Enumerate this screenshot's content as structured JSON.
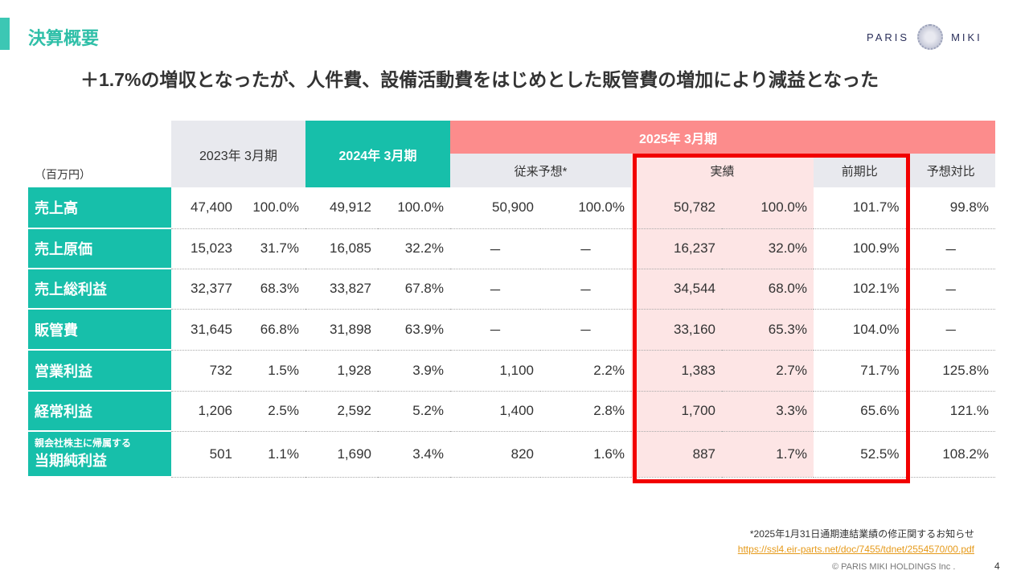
{
  "header": {
    "title": "決算概要",
    "logo_left": "PARIS",
    "logo_right": "MIKI"
  },
  "headline": "＋1.7%の増収となったが、人件費、設備活動費をはじめとした販管費の増加により減益となった",
  "table": {
    "unit": "（百万円）",
    "col_2023": "2023年 3月期",
    "col_2024": "2024年 3月期",
    "col_2025": "2025年 3月期",
    "sub_forecast": "従来予想*",
    "sub_actual": "実績",
    "sub_yoy": "前期比",
    "sub_vs_forecast": "予想対比",
    "rows": [
      {
        "label": "売上高",
        "v23": "47,400",
        "p23": "100.0%",
        "v24": "49,912",
        "p24": "100.0%",
        "vf": "50,900",
        "pf": "100.0%",
        "va": "50,782",
        "pa": "100.0%",
        "yoy": "101.7%",
        "vsf": "99.8%"
      },
      {
        "label": "売上原価",
        "v23": "15,023",
        "p23": "31.7%",
        "v24": "16,085",
        "p24": "32.2%",
        "vf": "－",
        "pf": "－",
        "va": "16,237",
        "pa": "32.0%",
        "yoy": "100.9%",
        "vsf": "－"
      },
      {
        "label": "売上総利益",
        "v23": "32,377",
        "p23": "68.3%",
        "v24": "33,827",
        "p24": "67.8%",
        "vf": "－",
        "pf": "－",
        "va": "34,544",
        "pa": "68.0%",
        "yoy": "102.1%",
        "vsf": "－"
      },
      {
        "label": "販管費",
        "v23": "31,645",
        "p23": "66.8%",
        "v24": "31,898",
        "p24": "63.9%",
        "vf": "－",
        "pf": "－",
        "va": "33,160",
        "pa": "65.3%",
        "yoy": "104.0%",
        "vsf": "－"
      },
      {
        "label": "営業利益",
        "v23": "732",
        "p23": "1.5%",
        "v24": "1,928",
        "p24": "3.9%",
        "vf": "1,100",
        "pf": "2.2%",
        "va": "1,383",
        "pa": "2.7%",
        "yoy": "71.7%",
        "vsf": "125.8%"
      },
      {
        "label": "経常利益",
        "v23": "1,206",
        "p23": "2.5%",
        "v24": "2,592",
        "p24": "5.2%",
        "vf": "1,400",
        "pf": "2.8%",
        "va": "1,700",
        "pa": "3.3%",
        "yoy": "65.6%",
        "vsf": "121.%"
      },
      {
        "label_small": "親会社株主に帰属する",
        "label": "当期純利益",
        "v23": "501",
        "p23": "1.1%",
        "v24": "1,690",
        "p24": "3.4%",
        "vf": "820",
        "pf": "1.6%",
        "va": "887",
        "pa": "1.7%",
        "yoy": "52.5%",
        "vsf": "108.2%"
      }
    ]
  },
  "footnote": {
    "text": "*2025年1月31日通期連結業績の修正関するお知らせ",
    "link": "https://ssl4.eir-parts.net/doc/7455/tdnet/2554570/00.pdf"
  },
  "footer": {
    "copyright": "© PARIS MIKI HOLDINGS Inc .",
    "page": "4"
  },
  "colors": {
    "teal": "#17bfaa",
    "pink_header": "#fc8c8c",
    "highlight_box": "#f20000"
  }
}
